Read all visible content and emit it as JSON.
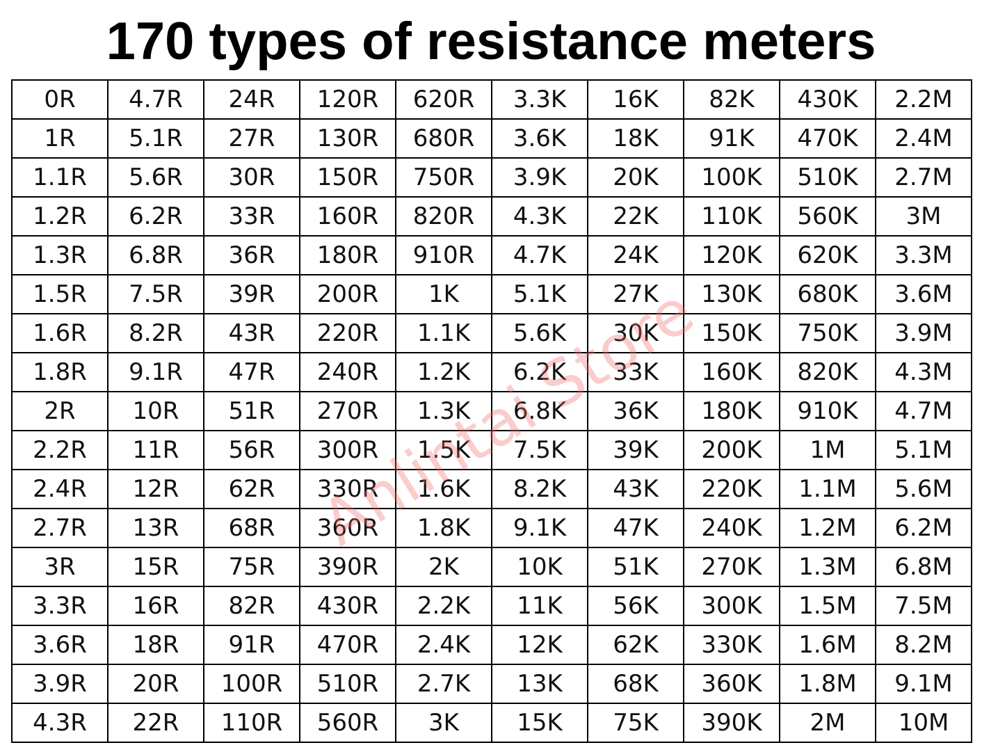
{
  "header": {
    "title": "170 types of resistance meters"
  },
  "watermark": "Anlintai Store",
  "table": {
    "rows": [
      [
        "0R",
        "4.7R",
        "24R",
        "120R",
        "620R",
        "3.3K",
        "16K",
        "82K",
        "430K",
        "2.2M"
      ],
      [
        "1R",
        "5.1R",
        "27R",
        "130R",
        "680R",
        "3.6K",
        "18K",
        "91K",
        "470K",
        "2.4M"
      ],
      [
        "1.1R",
        "5.6R",
        "30R",
        "150R",
        "750R",
        "3.9K",
        "20K",
        "100K",
        "510K",
        "2.7M"
      ],
      [
        "1.2R",
        "6.2R",
        "33R",
        "160R",
        "820R",
        "4.3K",
        "22K",
        "110K",
        "560K",
        "3M"
      ],
      [
        "1.3R",
        "6.8R",
        "36R",
        "180R",
        "910R",
        "4.7K",
        "24K",
        "120K",
        "620K",
        "3.3M"
      ],
      [
        "1.5R",
        "7.5R",
        "39R",
        "200R",
        "1K",
        "5.1K",
        "27K",
        "130K",
        "680K",
        "3.6M"
      ],
      [
        "1.6R",
        "8.2R",
        "43R",
        "220R",
        "1.1K",
        "5.6K",
        "30K",
        "150K",
        "750K",
        "3.9M"
      ],
      [
        "1.8R",
        "9.1R",
        "47R",
        "240R",
        "1.2K",
        "6.2K",
        "33K",
        "160K",
        "820K",
        "4.3M"
      ],
      [
        "2R",
        "10R",
        "51R",
        "270R",
        "1.3K",
        "6.8K",
        "36K",
        "180K",
        "910K",
        "4.7M"
      ],
      [
        "2.2R",
        "11R",
        "56R",
        "300R",
        "1.5K",
        "7.5K",
        "39K",
        "200K",
        "1M",
        "5.1M"
      ],
      [
        "2.4R",
        "12R",
        "62R",
        "330R",
        "1.6K",
        "8.2K",
        "43K",
        "220K",
        "1.1M",
        "5.6M"
      ],
      [
        "2.7R",
        "13R",
        "68R",
        "360R",
        "1.8K",
        "9.1K",
        "47K",
        "240K",
        "1.2M",
        "6.2M"
      ],
      [
        "3R",
        "15R",
        "75R",
        "390R",
        "2K",
        "10K",
        "51K",
        "270K",
        "1.3M",
        "6.8M"
      ],
      [
        "3.3R",
        "16R",
        "82R",
        "430R",
        "2.2K",
        "11K",
        "56K",
        "300K",
        "1.5M",
        "7.5M"
      ],
      [
        "3.6R",
        "18R",
        "91R",
        "470R",
        "2.4K",
        "12K",
        "62K",
        "330K",
        "1.6M",
        "8.2M"
      ],
      [
        "3.9R",
        "20R",
        "100R",
        "510R",
        "2.7K",
        "13K",
        "68K",
        "360K",
        "1.8M",
        "9.1M"
      ],
      [
        "4.3R",
        "22R",
        "110R",
        "560R",
        "3K",
        "15K",
        "75K",
        "390K",
        "2M",
        "10M"
      ]
    ]
  }
}
